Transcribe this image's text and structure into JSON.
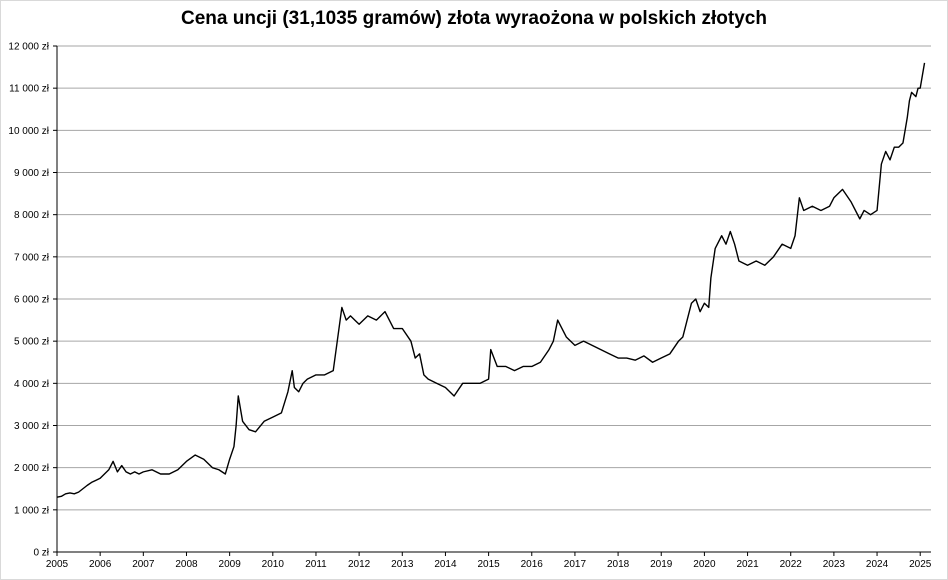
{
  "chart_data": {
    "type": "line",
    "title": "Cena uncji (31,1035 gramów) złota wyraożona w polskich złotych",
    "xlabel": "",
    "ylabel": "",
    "ylim": [
      0,
      12000
    ],
    "xlim": [
      2005,
      2025.25
    ],
    "grid": "horizontal",
    "legend": "none",
    "line_color": "#000000",
    "grid_color": "#a6a6a6",
    "y_ticks": [
      {
        "value": 0,
        "label": "0 zł"
      },
      {
        "value": 1000,
        "label": "1 000 zł"
      },
      {
        "value": 2000,
        "label": "2 000 zł"
      },
      {
        "value": 3000,
        "label": "3 000 zł"
      },
      {
        "value": 4000,
        "label": "4 000 zł"
      },
      {
        "value": 5000,
        "label": "5 000 zł"
      },
      {
        "value": 6000,
        "label": "6 000 zł"
      },
      {
        "value": 7000,
        "label": "7 000 zł"
      },
      {
        "value": 8000,
        "label": "8 000 zł"
      },
      {
        "value": 9000,
        "label": "9 000 zł"
      },
      {
        "value": 10000,
        "label": "10 000 zł"
      },
      {
        "value": 11000,
        "label": "11 000 zł"
      },
      {
        "value": 12000,
        "label": "12 000 zł"
      }
    ],
    "x_ticks": [
      "2005",
      "2006",
      "2007",
      "2008",
      "2009",
      "2010",
      "2011",
      "2012",
      "2013",
      "2014",
      "2015",
      "2016",
      "2017",
      "2018",
      "2019",
      "2020",
      "2021",
      "2022",
      "2023",
      "2024",
      "2025"
    ],
    "series": [
      {
        "x": [
          2005.0,
          2005.1,
          2005.2,
          2005.3,
          2005.4,
          2005.5,
          2005.6,
          2005.7,
          2005.8,
          2005.9,
          2006.0,
          2006.1,
          2006.2,
          2006.3,
          2006.4,
          2006.5,
          2006.6,
          2006.7,
          2006.8,
          2006.9,
          2007.0,
          2007.2,
          2007.4,
          2007.6,
          2007.8,
          2008.0,
          2008.2,
          2008.4,
          2008.6,
          2008.75,
          2008.9,
          2009.0,
          2009.1,
          2009.15,
          2009.2,
          2009.3,
          2009.45,
          2009.6,
          2009.8,
          2010.0,
          2010.2,
          2010.35,
          2010.45,
          2010.5,
          2010.6,
          2010.7,
          2010.8,
          2011.0,
          2011.2,
          2011.4,
          2011.6,
          2011.7,
          2011.8,
          2011.9,
          2012.0,
          2012.2,
          2012.4,
          2012.6,
          2012.8,
          2013.0,
          2013.2,
          2013.3,
          2013.4,
          2013.5,
          2013.6,
          2013.8,
          2014.0,
          2014.2,
          2014.4,
          2014.6,
          2014.8,
          2015.0,
          2015.05,
          2015.2,
          2015.4,
          2015.6,
          2015.8,
          2016.0,
          2016.2,
          2016.4,
          2016.5,
          2016.6,
          2016.8,
          2017.0,
          2017.2,
          2017.4,
          2017.6,
          2017.8,
          2018.0,
          2018.2,
          2018.4,
          2018.6,
          2018.8,
          2019.0,
          2019.2,
          2019.4,
          2019.5,
          2019.6,
          2019.7,
          2019.8,
          2019.9,
          2020.0,
          2020.1,
          2020.15,
          2020.25,
          2020.4,
          2020.5,
          2020.6,
          2020.7,
          2020.8,
          2021.0,
          2021.2,
          2021.4,
          2021.6,
          2021.8,
          2022.0,
          2022.1,
          2022.2,
          2022.3,
          2022.5,
          2022.7,
          2022.9,
          2023.0,
          2023.2,
          2023.4,
          2023.6,
          2023.7,
          2023.85,
          2024.0,
          2024.1,
          2024.2,
          2024.3,
          2024.4,
          2024.5,
          2024.6,
          2024.7,
          2024.75,
          2024.8,
          2024.9,
          2024.95,
          2025.0,
          2025.05,
          2025.1
        ],
        "values": [
          1300,
          1320,
          1380,
          1400,
          1380,
          1420,
          1500,
          1580,
          1650,
          1700,
          1750,
          1850,
          1950,
          2150,
          1900,
          2050,
          1900,
          1850,
          1900,
          1850,
          1900,
          1950,
          1850,
          1850,
          1950,
          2150,
          2300,
          2200,
          2000,
          1950,
          1850,
          2200,
          2500,
          3000,
          3700,
          3100,
          2900,
          2850,
          3100,
          3200,
          3300,
          3800,
          4300,
          3900,
          3800,
          4000,
          4100,
          4200,
          4200,
          4300,
          5800,
          5500,
          5600,
          5500,
          5400,
          5600,
          5500,
          5700,
          5300,
          5300,
          5000,
          4600,
          4700,
          4200,
          4100,
          4000,
          3900,
          3700,
          4000,
          4000,
          4000,
          4100,
          4800,
          4400,
          4400,
          4300,
          4400,
          4400,
          4500,
          4800,
          5000,
          5500,
          5100,
          4900,
          5000,
          4900,
          4800,
          4700,
          4600,
          4600,
          4550,
          4650,
          4500,
          4600,
          4700,
          5000,
          5100,
          5500,
          5900,
          6000,
          5700,
          5900,
          5800,
          6500,
          7200,
          7500,
          7300,
          7600,
          7300,
          6900,
          6800,
          6900,
          6800,
          7000,
          7300,
          7200,
          7500,
          8400,
          8100,
          8200,
          8100,
          8200,
          8400,
          8600,
          8300,
          7900,
          8100,
          8000,
          8100,
          9200,
          9500,
          9300,
          9600,
          9600,
          9700,
          10300,
          10700,
          10900,
          10800,
          11000,
          11000,
          11300,
          11600
        ]
      }
    ]
  }
}
